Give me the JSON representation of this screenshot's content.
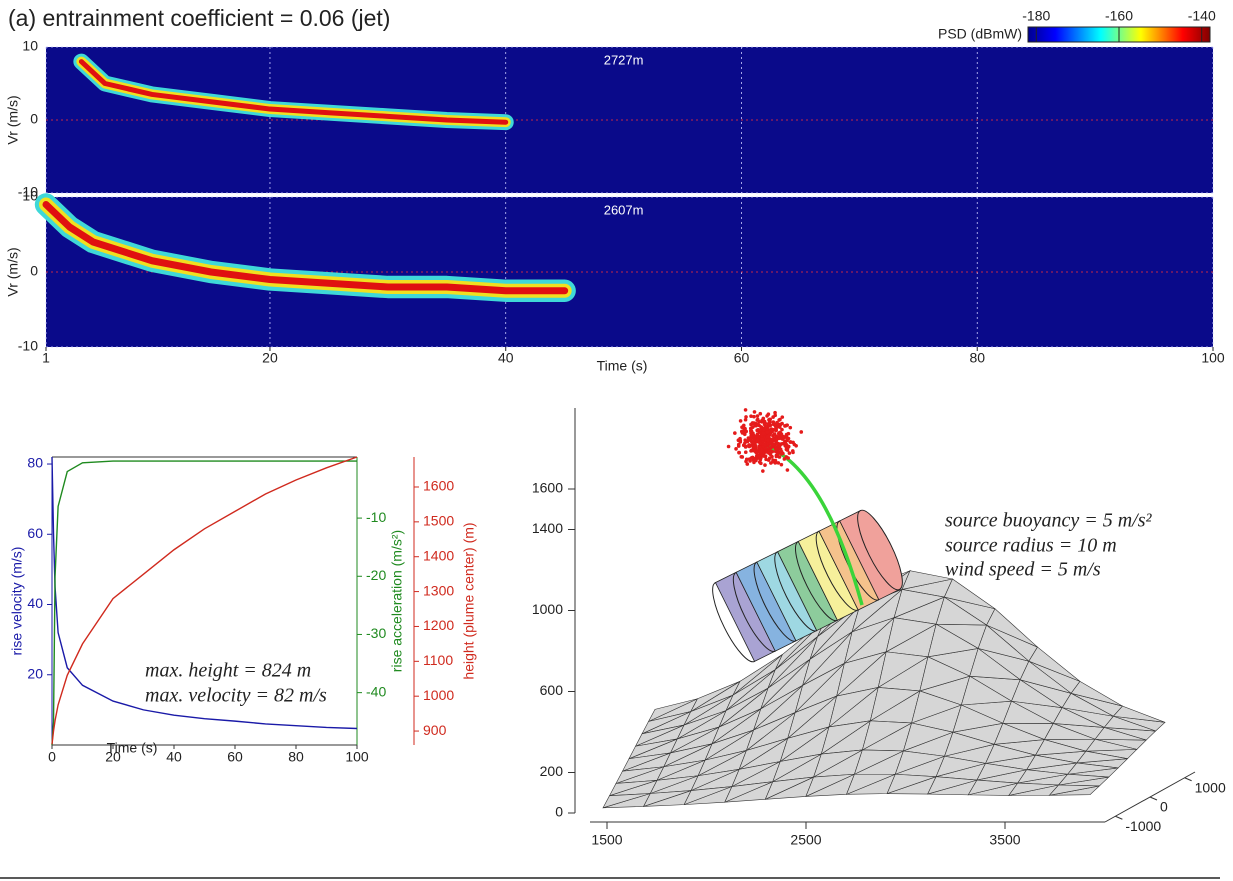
{
  "chart_data": [
    {
      "type": "spectrogram",
      "title": "(a) entrainment coefficient = 0.06 (jet)",
      "colorbar": {
        "label": "PSD (dBmW)",
        "clim": [
          -182,
          -138
        ],
        "ticks": [
          -180,
          -160,
          -140
        ]
      },
      "xlabel": "Time (s)",
      "xlim": [
        1,
        100
      ],
      "xticks": [
        1,
        20,
        40,
        60,
        80,
        100
      ],
      "ylabel": "Vr (m/s)",
      "ylim": [
        -10,
        10
      ],
      "yticks": [
        -10,
        0,
        10
      ],
      "grid": true,
      "panels": [
        {
          "annotation": "2727m",
          "x": [
            4,
            6,
            10,
            15,
            20,
            25,
            30,
            35,
            40
          ],
          "values": [
            8,
            5,
            3.5,
            2.5,
            1.5,
            1,
            0.5,
            0,
            -0.3
          ]
        },
        {
          "annotation": "2607m",
          "x": [
            1,
            3,
            5,
            10,
            15,
            20,
            25,
            30,
            35,
            40,
            45
          ],
          "values": [
            9,
            6,
            4,
            1.5,
            0,
            -1,
            -1.5,
            -2,
            -2,
            -2.5,
            -2.5
          ]
        }
      ]
    },
    {
      "type": "line",
      "xlabel": "Time (s)",
      "xlim": [
        0,
        100
      ],
      "xticks": [
        0,
        20,
        40,
        60,
        80,
        100
      ],
      "x": [
        0,
        0.5,
        1,
        2,
        5,
        10,
        20,
        30,
        40,
        50,
        60,
        70,
        80,
        90,
        100
      ],
      "ylabel": "rise velocity (m/s)",
      "ylim": [
        0,
        82
      ],
      "yticks": [
        20,
        40,
        60,
        80
      ],
      "y2label": "rise acceleration (m/s²)",
      "y2lim": [
        -49,
        0.5
      ],
      "y2ticks": [
        -40,
        -30,
        -20,
        -10
      ],
      "y3label": "height (plume center) (m)",
      "y3lim": [
        860,
        1686
      ],
      "y3ticks": [
        900,
        1000,
        1100,
        1200,
        1300,
        1400,
        1500,
        1600
      ],
      "series": [
        {
          "color": "#1a1aa8",
          "axis": "y",
          "values": [
            82,
            60,
            45,
            32,
            22,
            17,
            12.5,
            10,
            8.5,
            7.5,
            6.8,
            6,
            5.5,
            5,
            4.7
          ]
        },
        {
          "color": "#1f8a1f",
          "axis": "y2",
          "values": [
            -49,
            -45,
            -20,
            -8,
            -2,
            -0.5,
            -0.2,
            -0.2,
            -0.2,
            -0.2,
            -0.2,
            -0.2,
            -0.2,
            -0.2,
            -0.2
          ]
        },
        {
          "color": "#d02a1e",
          "axis": "y3",
          "values": [
            862,
            900,
            930,
            975,
            1060,
            1150,
            1280,
            1350,
            1420,
            1480,
            1530,
            1580,
            1620,
            1655,
            1686
          ]
        }
      ],
      "annotations": [
        "max. height = 824 m",
        "max. velocity = 82 m/s"
      ]
    },
    {
      "type": "3d-surface",
      "zlim": [
        0,
        2000
      ],
      "zticks": [
        0,
        200,
        600,
        1000,
        1400,
        1600
      ],
      "xlim": [
        1400,
        3900
      ],
      "xticks": [
        1500,
        2500,
        3500
      ],
      "ylim": [
        -1300,
        1300
      ],
      "yticks": [
        -1000,
        0,
        1000
      ],
      "annotations": [
        "source buoyancy = 5 m/s²",
        "source radius = 10 m",
        "wind speed = 5 m/s"
      ]
    }
  ]
}
